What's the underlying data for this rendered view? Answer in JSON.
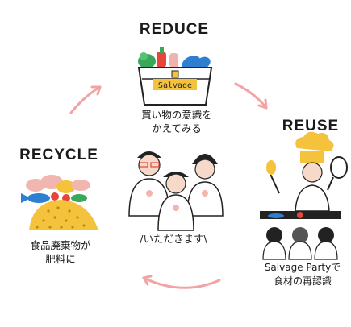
{
  "reduce": {
    "title": "REDUCE",
    "caption_line1": "買い物の意識を",
    "caption_line2": "かえてみる",
    "basket_label": "Salvage"
  },
  "reuse": {
    "title": "REUSE",
    "caption_line1": "Salvage Partyで",
    "caption_line2": "食材の再認識"
  },
  "recycle": {
    "title": "RECYCLE",
    "caption_line1": "食品廃棄物が",
    "caption_line2": "肥料に"
  },
  "center": {
    "caption": "/いただきます\\"
  },
  "colors": {
    "arrow": "#f2a3a3",
    "accent_yellow": "#f5c33b",
    "accent_blue": "#2f7fd1",
    "accent_red": "#e8443a",
    "accent_green": "#3aa85b",
    "pink": "#f2b6b0"
  }
}
